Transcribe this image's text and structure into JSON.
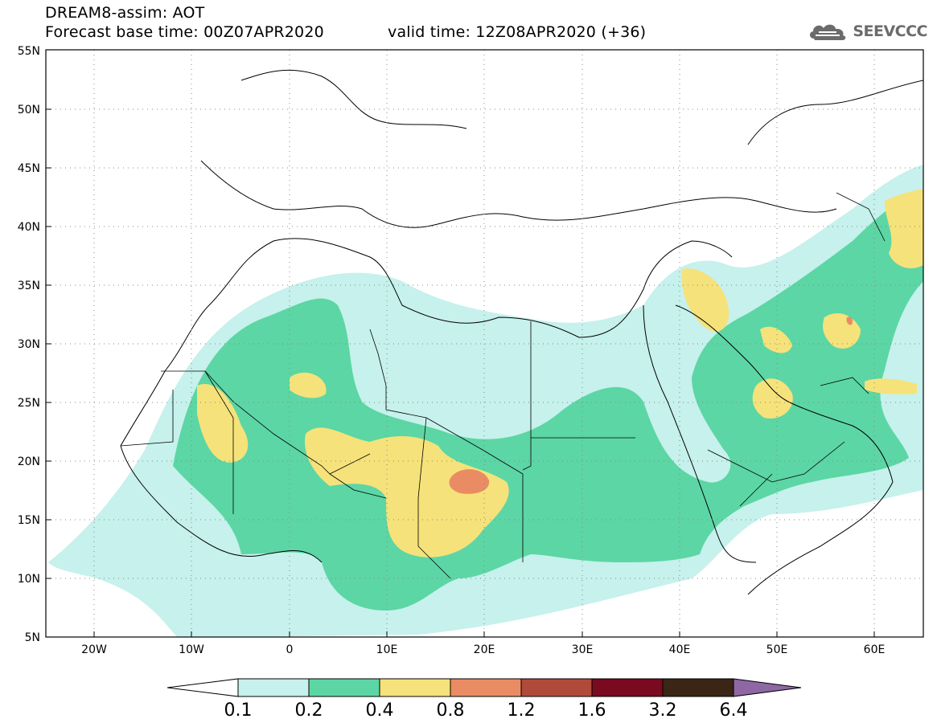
{
  "header": {
    "line1": "DREAM8-assim: AOT",
    "line2": "Forecast base time: 00Z07APR2020",
    "valid": "valid time: 12Z08APR2020 (+36)"
  },
  "logo": {
    "text": "SEEVCCC",
    "icon": "cloud-icon"
  },
  "map": {
    "lon_range": [
      -25,
      65
    ],
    "lat_range": [
      5,
      55
    ],
    "lat_ticks": [
      "55N",
      "50N",
      "45N",
      "40N",
      "35N",
      "30N",
      "25N",
      "20N",
      "15N",
      "10N",
      "5N"
    ],
    "lon_ticks": [
      "20W",
      "10W",
      "0",
      "10E",
      "20E",
      "30E",
      "40E",
      "50E",
      "60E"
    ]
  },
  "colorbar": {
    "labels": [
      "0.1",
      "0.2",
      "0.4",
      "0.8",
      "1.2",
      "1.6",
      "3.2",
      "6.4"
    ],
    "colors": [
      "#ffffff",
      "#c6f1ec",
      "#5cd6a4",
      "#f6e27a",
      "#ea8c63",
      "#b04a3a",
      "#7a0a20",
      "#3a2616",
      "#8e67a3"
    ]
  }
}
